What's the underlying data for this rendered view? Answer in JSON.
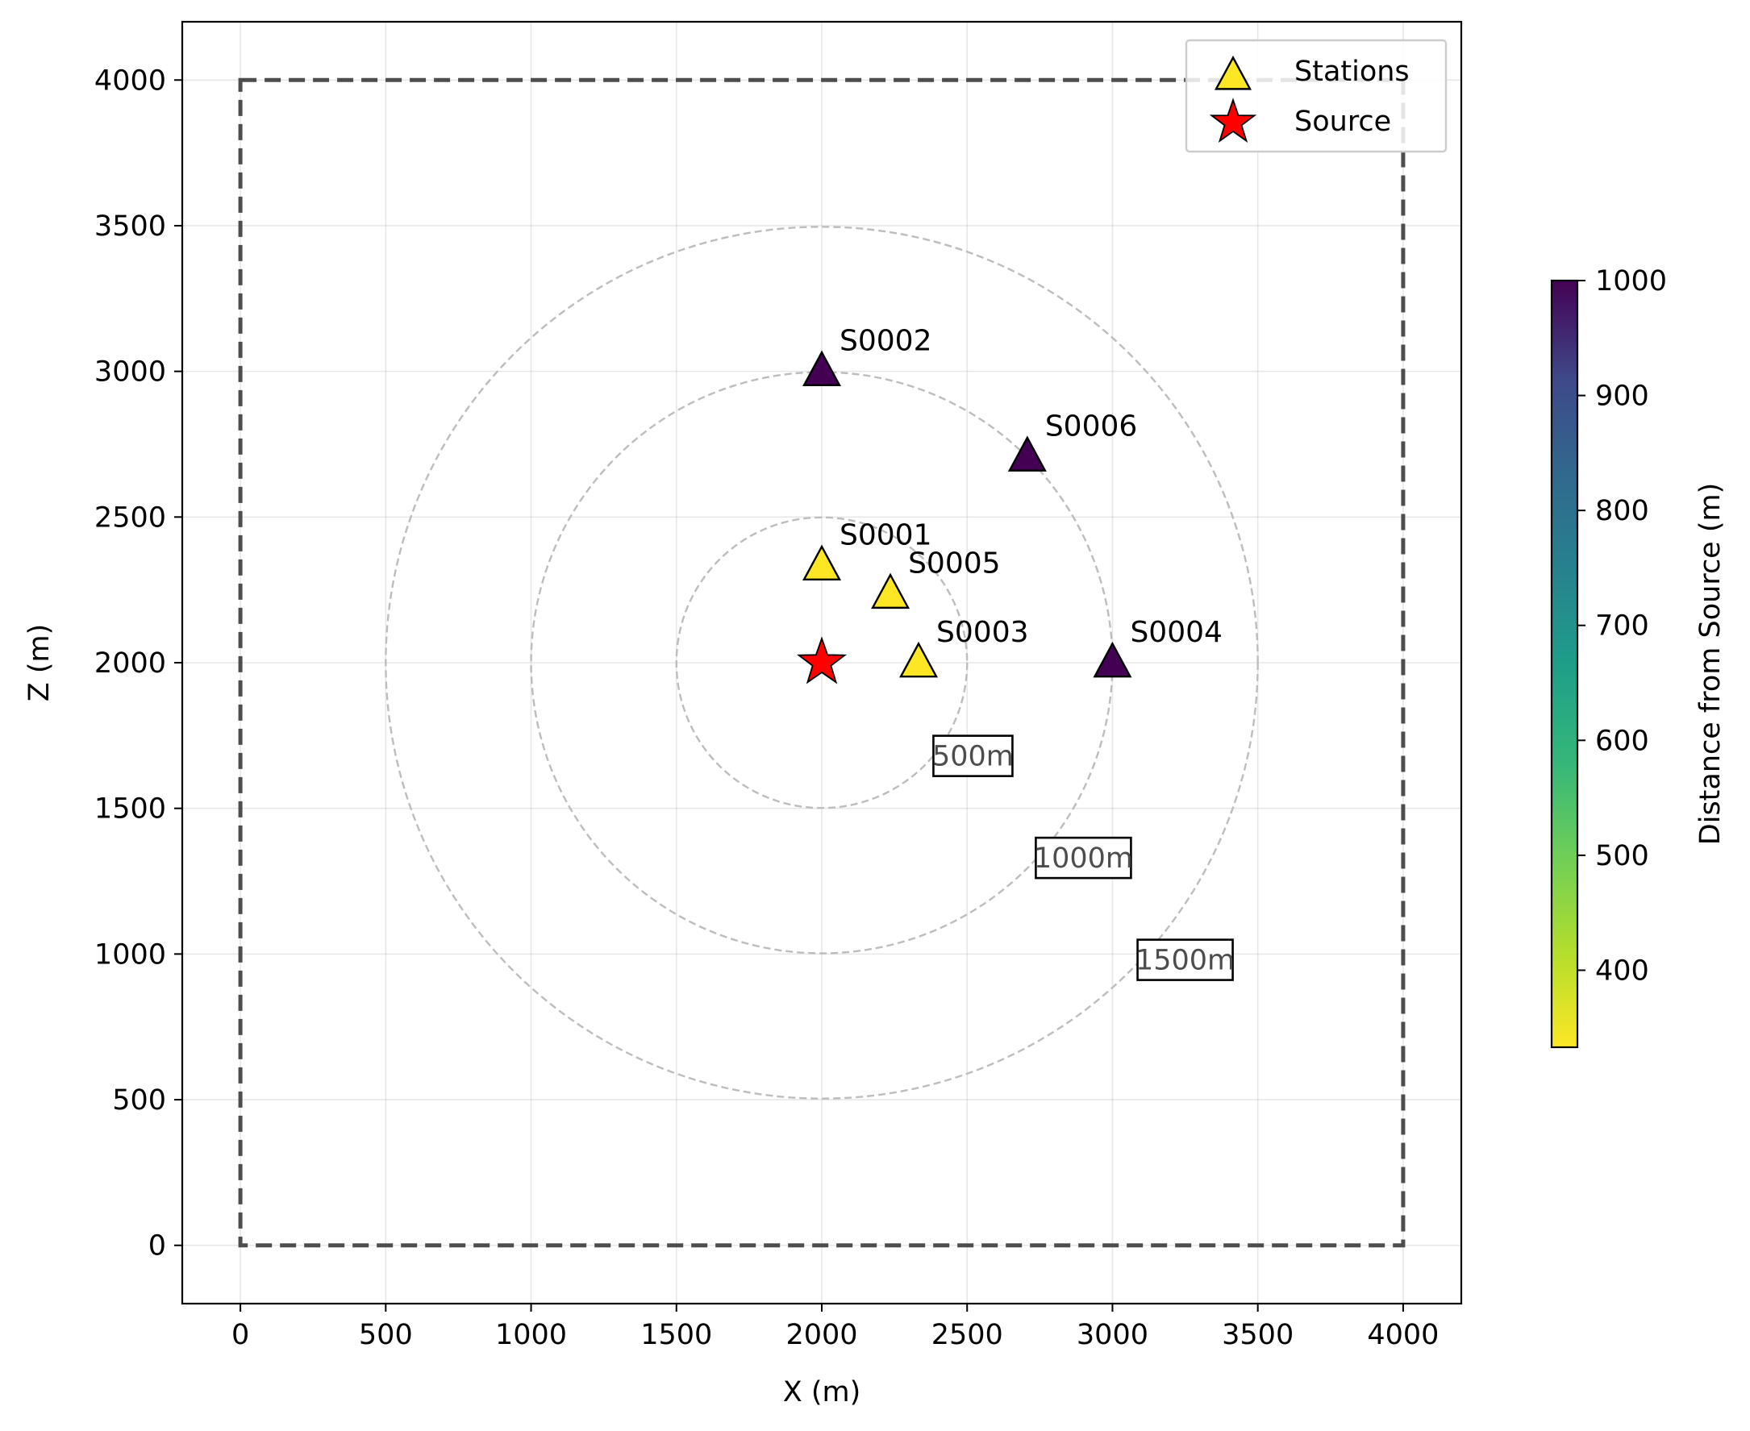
{
  "chart_data": {
    "type": "scatter",
    "title": "",
    "xlabel": "X (m)",
    "ylabel": "Z (m)",
    "xlim": [
      -200,
      4200
    ],
    "ylim": [
      -200,
      4200
    ],
    "xticks": [
      0,
      500,
      1000,
      1500,
      2000,
      2500,
      3000,
      3500,
      4000
    ],
    "yticks": [
      0,
      500,
      1000,
      1500,
      2000,
      2500,
      3000,
      3500,
      4000
    ],
    "grid": true,
    "domain_box": {
      "x": [
        0,
        4000
      ],
      "z": [
        0,
        4000
      ],
      "color": "#4d4d4d"
    },
    "source": {
      "name": "Source",
      "x": 2000,
      "z": 2000,
      "color": "#ff0000"
    },
    "stations": [
      {
        "label": "S0001",
        "x": 2000,
        "z": 2333,
        "distance": 333
      },
      {
        "label": "S0002",
        "x": 2000,
        "z": 3000,
        "distance": 1000
      },
      {
        "label": "S0003",
        "x": 2333,
        "z": 2000,
        "distance": 333
      },
      {
        "label": "S0004",
        "x": 3000,
        "z": 2000,
        "distance": 1000
      },
      {
        "label": "S0005",
        "x": 2236,
        "z": 2236,
        "distance": 333
      },
      {
        "label": "S0006",
        "x": 2707,
        "z": 2707,
        "distance": 1000
      }
    ],
    "range_circles": [
      {
        "radius": 500,
        "label": "500m",
        "label_x": 2520,
        "label_z": 1680
      },
      {
        "radius": 1000,
        "label": "1000m",
        "label_x": 2900,
        "label_z": 1330
      },
      {
        "radius": 1500,
        "label": "1500m",
        "label_x": 3250,
        "label_z": 980
      }
    ],
    "legend": {
      "placement": "top-right",
      "entries": [
        {
          "name": "Stations",
          "marker": "triangle"
        },
        {
          "name": "Source",
          "marker": "star"
        }
      ]
    },
    "colorbar": {
      "label": "Distance from Source (m)",
      "colormap": "viridis",
      "range": [
        333,
        1000
      ],
      "ticks": [
        400,
        500,
        600,
        700,
        800,
        900,
        1000
      ]
    }
  }
}
